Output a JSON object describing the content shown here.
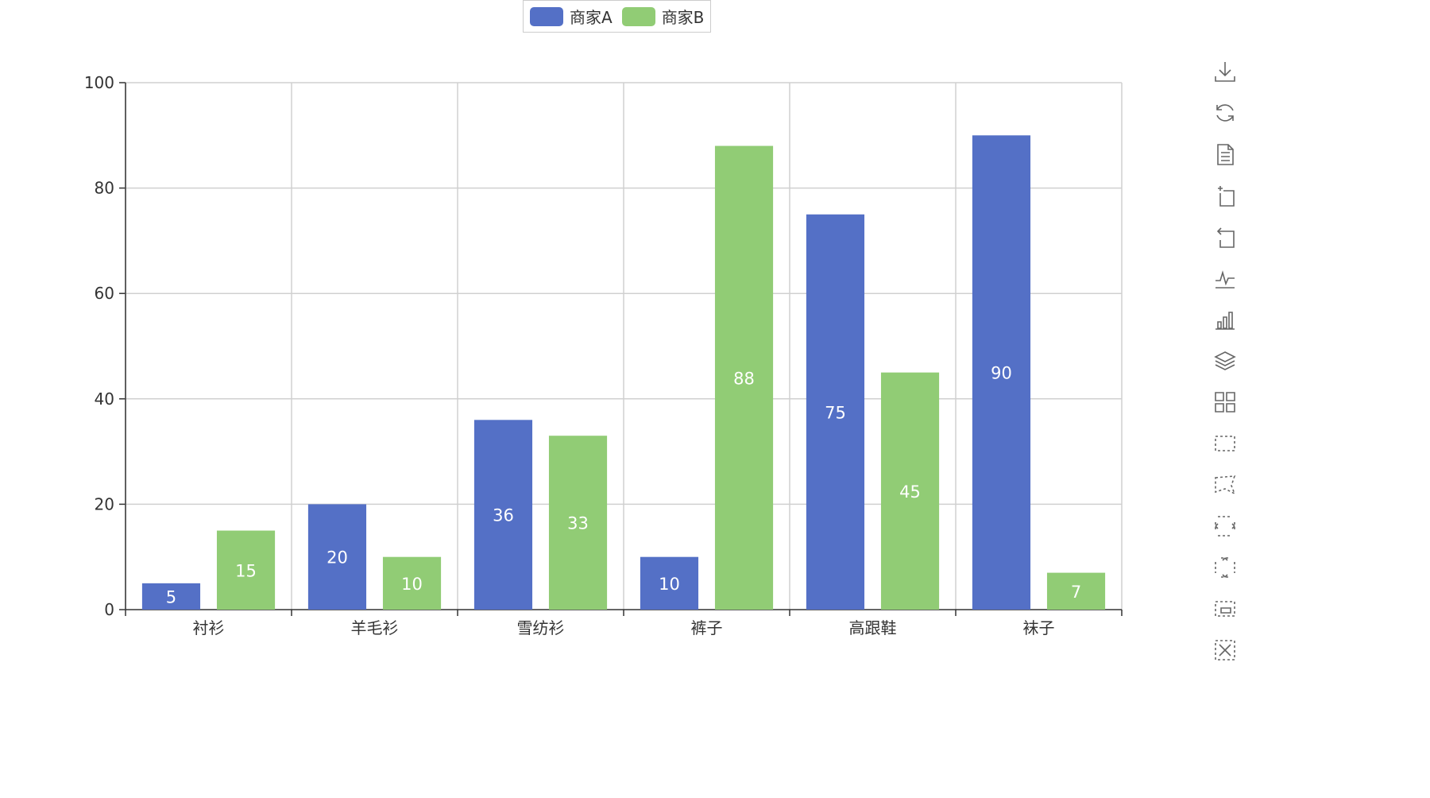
{
  "chart_data": {
    "type": "bar",
    "categories": [
      "衬衫",
      "羊毛衫",
      "雪纺衫",
      "裤子",
      "高跟鞋",
      "袜子"
    ],
    "series": [
      {
        "name": "商家A",
        "values": [
          5,
          20,
          36,
          10,
          75,
          90
        ],
        "color": "#5470c6"
      },
      {
        "name": "商家B",
        "values": [
          15,
          10,
          33,
          88,
          45,
          7
        ],
        "color": "#91cc75"
      }
    ],
    "ylim": [
      0,
      100
    ],
    "yticks": [
      0,
      20,
      40,
      60,
      80,
      100
    ],
    "grid": true,
    "legend_position": "top-center",
    "data_labels": true,
    "label_color": "#ffffff"
  },
  "toolbox": {
    "icons": [
      "download-icon",
      "restore-icon",
      "data-view-icon",
      "zoom-in-icon",
      "zoom-back-icon",
      "line-type-icon",
      "bar-type-icon",
      "stack-icon",
      "tiled-icon",
      "brush-rect-icon",
      "brush-polygon-icon",
      "brush-line-x-icon",
      "brush-line-y-icon",
      "brush-keep-icon",
      "brush-clear-icon"
    ]
  }
}
